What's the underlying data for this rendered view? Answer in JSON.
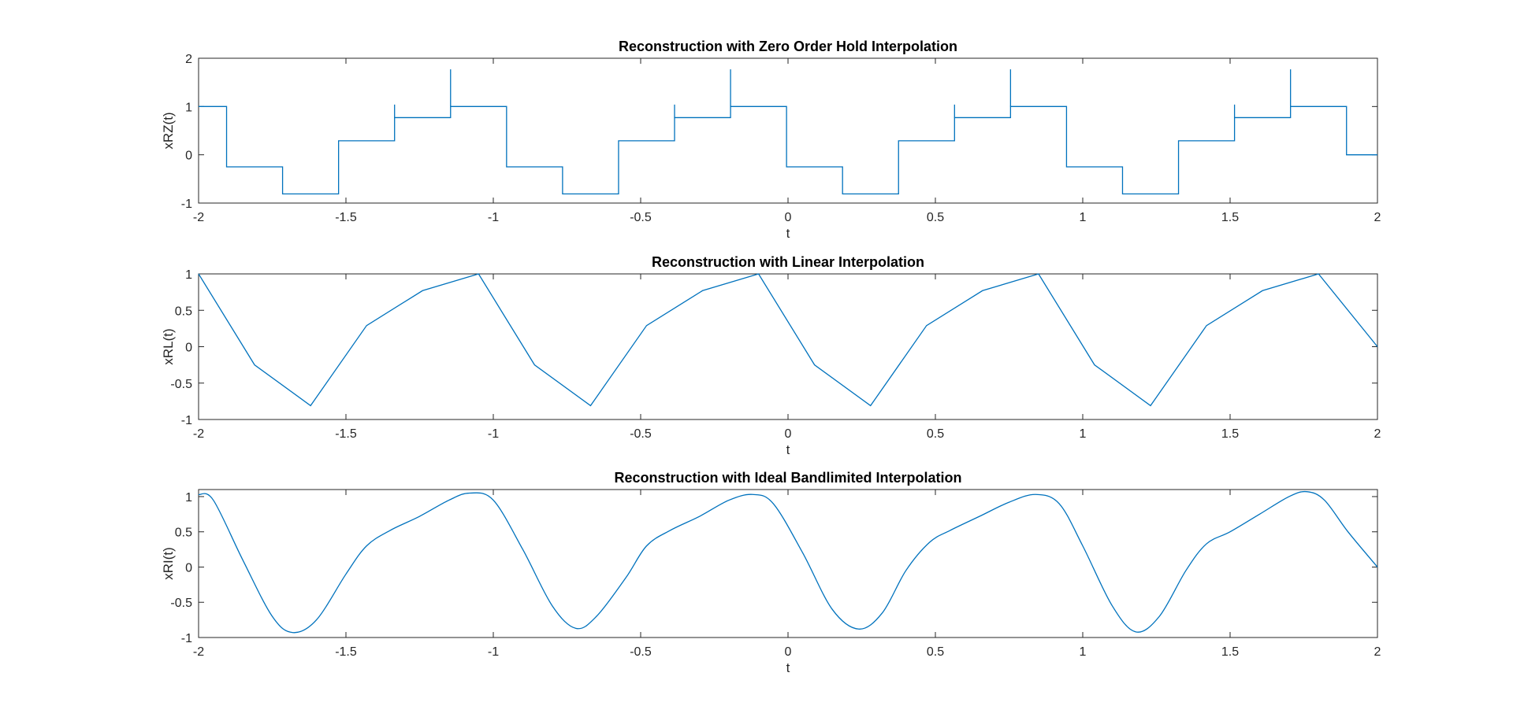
{
  "chart_data": [
    {
      "type": "line",
      "title": "Reconstruction with Zero Order Hold Interpolation",
      "xlabel": "t",
      "ylabel": "xRZ(t)",
      "xlim": [
        -2,
        2
      ],
      "ylim": [
        -1,
        2
      ],
      "xticks": [
        "-2",
        "-1.5",
        "-1",
        "-0.5",
        "0",
        "0.5",
        "1",
        "1.5",
        "2"
      ],
      "yticks": [
        "-1",
        "0",
        "1",
        "2"
      ],
      "color": "#0072BD",
      "series": [
        {
          "style": "step",
          "x": [
            -2,
            -1.905,
            -1.715,
            -1.525,
            -1.335,
            -1.145,
            -0.955,
            -0.765,
            -0.575,
            -0.385,
            -0.195,
            -0.005,
            0.185,
            0.375,
            0.565,
            0.755,
            0.945,
            1.135,
            1.325,
            1.515,
            1.705,
            1.895,
            2
          ],
          "y": [
            1.0,
            -0.25,
            -0.81,
            0.29,
            0.77,
            1.0,
            -0.25,
            -0.81,
            0.29,
            0.77,
            1.0,
            -0.25,
            -0.81,
            0.29,
            0.77,
            1.0,
            -0.25,
            -0.81,
            0.29,
            0.77,
            1.0,
            0.0,
            0.0
          ]
        }
      ]
    },
    {
      "type": "line",
      "title": "Reconstruction with Linear Interpolation",
      "xlabel": "t",
      "ylabel": "xRL(t)",
      "xlim": [
        -2,
        2
      ],
      "ylim": [
        -1,
        1
      ],
      "xticks": [
        "-2",
        "-1.5",
        "-1",
        "-0.5",
        "0",
        "0.5",
        "1",
        "1.5",
        "2"
      ],
      "yticks": [
        "-1",
        "-0.5",
        "0",
        "0.5",
        "1"
      ],
      "color": "#0072BD",
      "series": [
        {
          "style": "linear",
          "x": [
            -2.0,
            -1.81,
            -1.62,
            -1.43,
            -1.24,
            -1.05,
            -0.86,
            -0.67,
            -0.48,
            -0.29,
            -0.1,
            0.09,
            0.28,
            0.47,
            0.66,
            0.85,
            1.04,
            1.23,
            1.42,
            1.61,
            1.8,
            2.0
          ],
          "y": [
            1.0,
            -0.25,
            -0.81,
            0.29,
            0.77,
            1.0,
            -0.25,
            -0.81,
            0.29,
            0.77,
            1.0,
            -0.25,
            -0.81,
            0.29,
            0.77,
            1.0,
            -0.25,
            -0.81,
            0.29,
            0.77,
            1.0,
            0.0
          ]
        }
      ]
    },
    {
      "type": "line",
      "title": "Reconstruction with Ideal Bandlimited Interpolation",
      "xlabel": "t",
      "ylabel": "xRI(t)",
      "xlim": [
        -2,
        2
      ],
      "ylim": [
        -1,
        1.1
      ],
      "xticks": [
        "-2",
        "-1.5",
        "-1",
        "-0.5",
        "0",
        "0.5",
        "1",
        "1.5",
        "2"
      ],
      "yticks": [
        "-1",
        "-0.5",
        "0",
        "0.5",
        "1"
      ],
      "color": "#0072BD",
      "series": [
        {
          "style": "smooth",
          "x": [
            -2.0,
            -1.95,
            -1.85,
            -1.75,
            -1.68,
            -1.6,
            -1.5,
            -1.43,
            -1.35,
            -1.25,
            -1.15,
            -1.08,
            -1.0,
            -0.9,
            -0.8,
            -0.72,
            -0.65,
            -0.55,
            -0.48,
            -0.4,
            -0.3,
            -0.2,
            -0.12,
            -0.05,
            0.05,
            0.15,
            0.24,
            0.32,
            0.4,
            0.48,
            0.55,
            0.65,
            0.75,
            0.84,
            0.92,
            1.0,
            1.1,
            1.18,
            1.26,
            1.35,
            1.42,
            1.5,
            1.6,
            1.7,
            1.76,
            1.82,
            1.9,
            2.0
          ],
          "y": [
            1.03,
            0.95,
            0.1,
            -0.7,
            -0.93,
            -0.75,
            -0.1,
            0.3,
            0.52,
            0.72,
            0.95,
            1.05,
            0.95,
            0.25,
            -0.55,
            -0.87,
            -0.7,
            -0.15,
            0.3,
            0.52,
            0.72,
            0.95,
            1.03,
            0.9,
            0.2,
            -0.6,
            -0.88,
            -0.65,
            -0.05,
            0.35,
            0.52,
            0.72,
            0.92,
            1.03,
            0.9,
            0.3,
            -0.55,
            -0.92,
            -0.7,
            -0.05,
            0.33,
            0.5,
            0.75,
            1.0,
            1.07,
            0.95,
            0.5,
            0.0
          ]
        }
      ]
    }
  ]
}
